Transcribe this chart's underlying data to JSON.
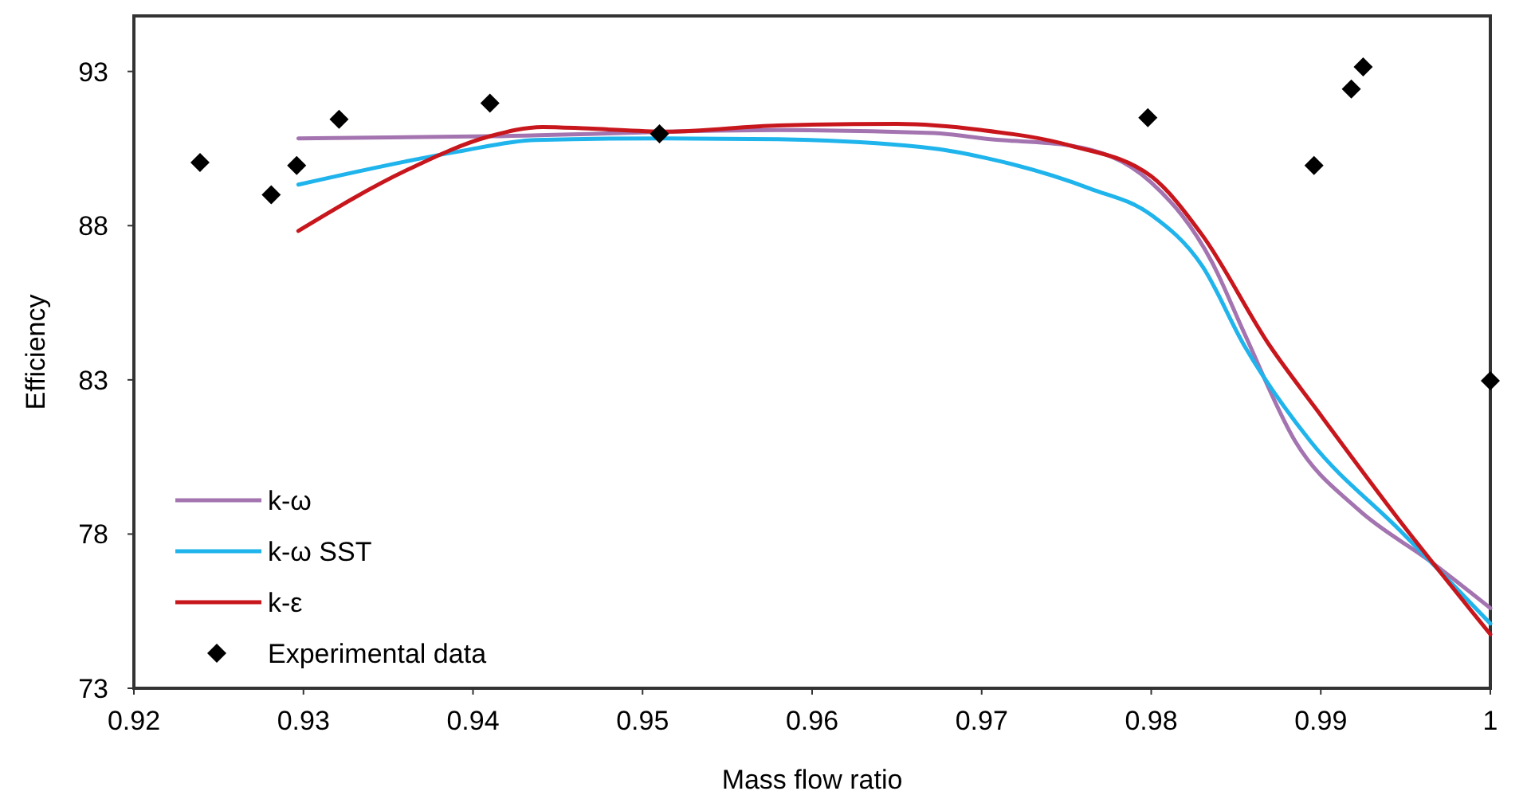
{
  "chart_data": {
    "type": "line",
    "xlabel": "Mass flow ratio",
    "ylabel": "Efficiency",
    "xlim": [
      0.92,
      1.0
    ],
    "ylim": [
      73,
      94.8
    ],
    "xticks": [
      {
        "value": 0.92,
        "label": "0.92"
      },
      {
        "value": 0.93,
        "label": "0.93"
      },
      {
        "value": 0.94,
        "label": "0.94"
      },
      {
        "value": 0.95,
        "label": "0.95"
      },
      {
        "value": 0.96,
        "label": "0.96"
      },
      {
        "value": 0.97,
        "label": "0.97"
      },
      {
        "value": 0.98,
        "label": "0.98"
      },
      {
        "value": 0.99,
        "label": "0.99"
      },
      {
        "value": 1.0,
        "label": "1"
      }
    ],
    "yticks": [
      73,
      78,
      83,
      88,
      93
    ],
    "grid": false,
    "legend": "bottom left",
    "line_style": "solid",
    "marker": "none",
    "series": [
      {
        "name": "k-ω",
        "color": "#a374b0",
        "x": [
          0.9297,
          0.941,
          0.958,
          0.9672,
          0.9705,
          0.9752,
          0.98,
          0.9836,
          0.9855,
          0.9885,
          0.9922,
          0.9965,
          1.0
        ],
        "values": [
          90.83,
          90.9,
          91.1,
          91.0,
          90.8,
          90.6,
          89.4,
          86.8,
          84.5,
          81.0,
          78.8,
          77.1,
          75.6
        ]
      },
      {
        "name": "k-ω SST",
        "color": "#1fb4ec",
        "x": [
          0.9297,
          0.9391,
          0.9437,
          0.9514,
          0.958,
          0.9672,
          0.9702,
          0.9764,
          0.98,
          0.983,
          0.9855,
          0.9894,
          0.9947,
          1.0
        ],
        "values": [
          89.33,
          90.4,
          90.78,
          90.83,
          90.8,
          90.5,
          90.2,
          89.2,
          88.35,
          86.7,
          84.1,
          81.0,
          78.1,
          75.1
        ]
      },
      {
        "name": "k-ε",
        "color": "#c8161d",
        "x": [
          0.9297,
          0.9361,
          0.941,
          0.9441,
          0.9468,
          0.9514,
          0.958,
          0.965,
          0.97,
          0.9752,
          0.98,
          0.983,
          0.987,
          0.9898,
          0.9947,
          1.0
        ],
        "values": [
          87.83,
          89.8,
          90.9,
          91.2,
          91.15,
          91.05,
          91.25,
          91.3,
          91.1,
          90.6,
          89.6,
          87.7,
          84.1,
          82.0,
          78.4,
          74.75
        ]
      },
      {
        "name": "Experimental data",
        "type": "scatter",
        "marker": "diamond",
        "color": "#000000",
        "x": [
          0.9239,
          0.9281,
          0.9296,
          0.9321,
          0.941,
          0.951,
          0.9798,
          0.9896,
          0.9918,
          0.9925,
          1.0
        ],
        "values": [
          90.05,
          89.0,
          89.95,
          91.45,
          91.97,
          90.98,
          91.5,
          89.95,
          92.43,
          93.15,
          82.97
        ]
      }
    ]
  }
}
